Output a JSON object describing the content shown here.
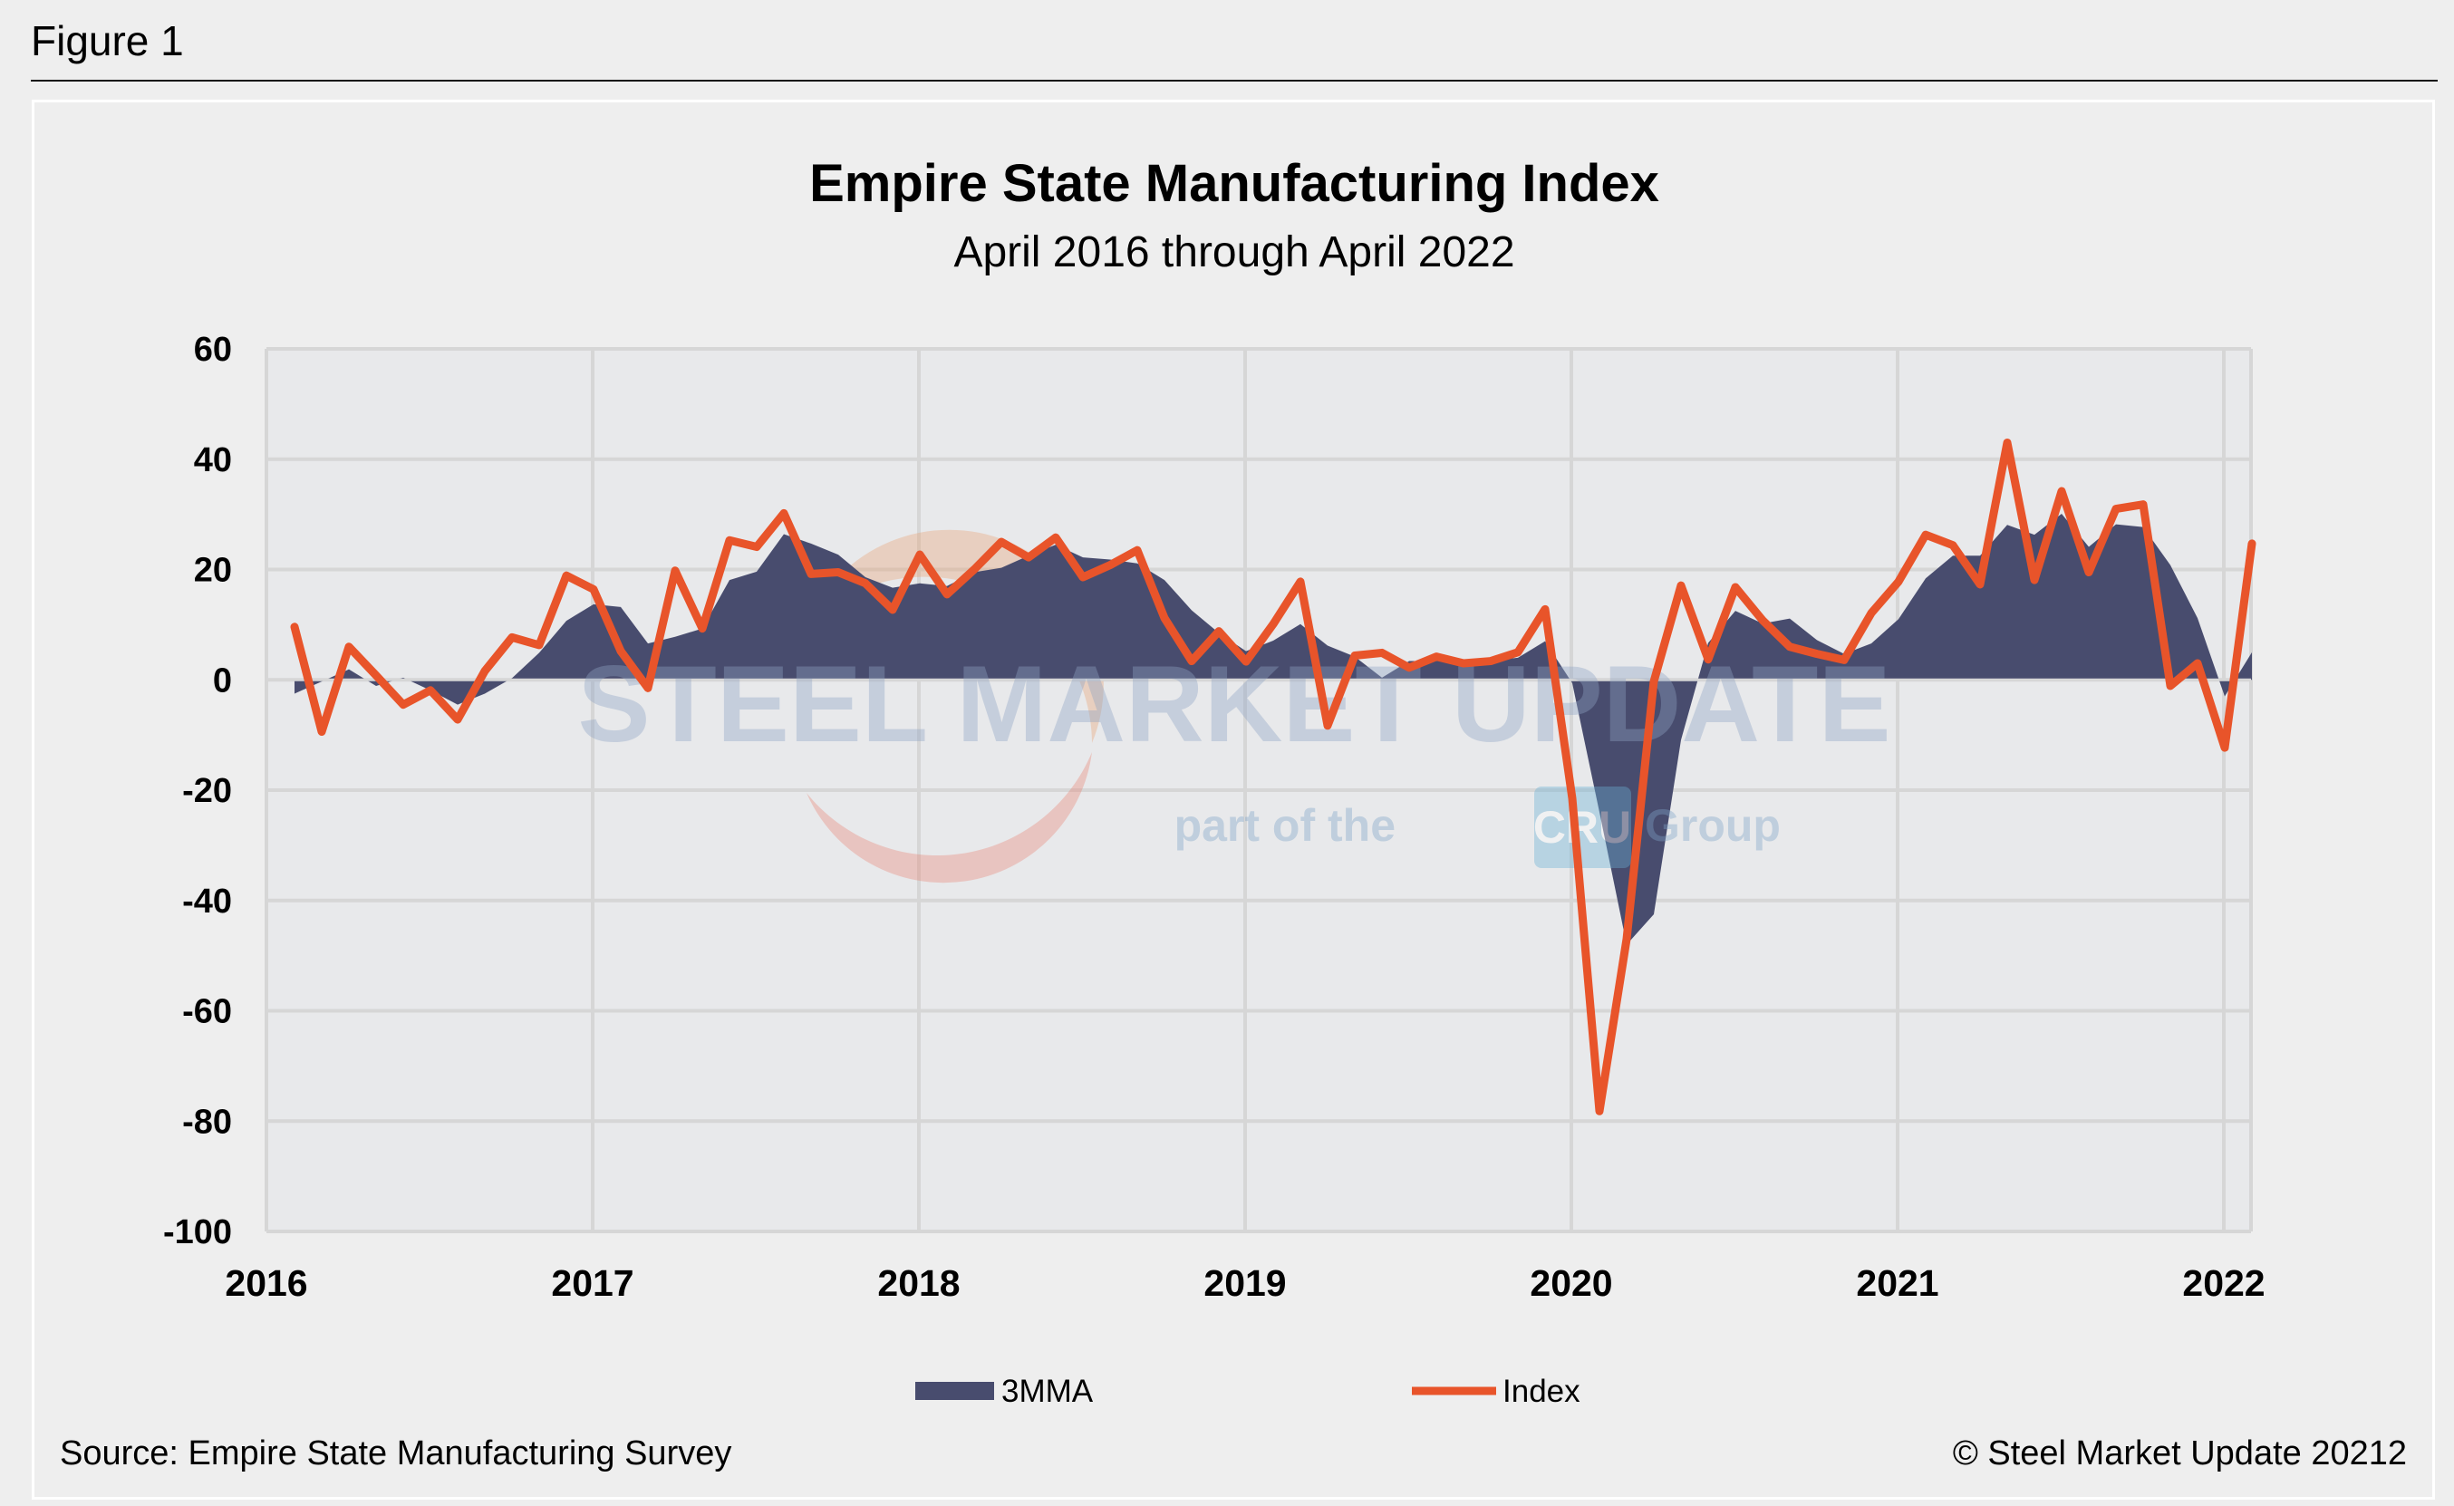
{
  "figure_label": "Figure 1",
  "footer": {
    "source": "Source: Empire State Manufacturing Survey",
    "copyright": "© Steel Market Update 20212"
  },
  "watermark": {
    "brand": "STEEL MARKET UPDATE",
    "tagline_pre": "part of the",
    "tagline_logo": "CRU",
    "tagline_post": "Group"
  },
  "colors": {
    "page_bg": "#eeeeee",
    "plot_bg": "#e8e9eb",
    "grid": "#d6d6d6",
    "area_3mma": "#484c6e",
    "line_index": "#e8542a"
  },
  "chart_data": {
    "type": "area+line",
    "title": "Empire State Manufacturing Index",
    "subtitle": "April 2016 through April 2022",
    "xlabel": "",
    "ylabel": "",
    "ylim": [
      -100,
      60
    ],
    "yticks": [
      60,
      40,
      20,
      0,
      -20,
      -40,
      -60,
      -80,
      -100
    ],
    "xtick_labels": [
      "2016",
      "2017",
      "2018",
      "2019",
      "2020",
      "2021",
      "2022"
    ],
    "grid": true,
    "legend_position": "bottom",
    "categories": [
      "2016-04",
      "2016-05",
      "2016-06",
      "2016-07",
      "2016-08",
      "2016-09",
      "2016-10",
      "2016-11",
      "2016-12",
      "2017-01",
      "2017-02",
      "2017-03",
      "2017-04",
      "2017-05",
      "2017-06",
      "2017-07",
      "2017-08",
      "2017-09",
      "2017-10",
      "2017-11",
      "2017-12",
      "2018-01",
      "2018-02",
      "2018-03",
      "2018-04",
      "2018-05",
      "2018-06",
      "2018-07",
      "2018-08",
      "2018-09",
      "2018-10",
      "2018-11",
      "2018-12",
      "2019-01",
      "2019-02",
      "2019-03",
      "2019-04",
      "2019-05",
      "2019-06",
      "2019-07",
      "2019-08",
      "2019-09",
      "2019-10",
      "2019-11",
      "2019-12",
      "2020-01",
      "2020-02",
      "2020-03",
      "2020-04",
      "2020-05",
      "2020-06",
      "2020-07",
      "2020-08",
      "2020-09",
      "2020-10",
      "2020-11",
      "2020-12",
      "2021-01",
      "2021-02",
      "2021-03",
      "2021-04",
      "2021-05",
      "2021-06",
      "2021-07",
      "2021-08",
      "2021-09",
      "2021-10",
      "2021-11",
      "2021-12",
      "2022-01",
      "2022-02",
      "2022-03",
      "2022-04"
    ],
    "series": [
      {
        "name": "3MMA",
        "type": "area",
        "values": [
          -2.5,
          -0.3,
          1.9,
          -1.1,
          0.4,
          -1.9,
          -4.5,
          -2.5,
          0.3,
          4.9,
          10.7,
          13.7,
          13.2,
          6.6,
          7.8,
          9.3,
          18.1,
          19.6,
          26.4,
          24.7,
          22.7,
          18.6,
          16.7,
          17.5,
          17.0,
          19.5,
          20.3,
          22.5,
          24.5,
          22.2,
          21.8,
          21.1,
          18.1,
          12.6,
          8.5,
          5.2,
          7.1,
          10.1,
          6.2,
          4.2,
          0.4,
          3.4,
          3.4,
          3.4,
          3.5,
          4.0,
          7.0,
          -0.6,
          -24.0,
          -48.0,
          -42.5,
          -10.9,
          6.7,
          12.5,
          10.2,
          11.1,
          7.2,
          4.7,
          6.6,
          11.0,
          18.4,
          22.5,
          22.5,
          28.1,
          26.3,
          30.1,
          24.1,
          28.2,
          27.7,
          20.8,
          11.2,
          -3.0,
          5.0
        ]
      },
      {
        "name": "Index",
        "type": "line",
        "values": [
          9.6,
          -9.4,
          6.0,
          0.8,
          -4.5,
          -1.9,
          -7.2,
          1.6,
          7.7,
          6.3,
          18.9,
          16.4,
          5.2,
          -1.5,
          19.8,
          9.3,
          25.3,
          24.1,
          30.2,
          19.2,
          19.5,
          17.5,
          12.7,
          22.7,
          15.5,
          20.0,
          25.0,
          22.2,
          25.8,
          18.6,
          20.8,
          23.5,
          11.2,
          3.4,
          8.8,
          3.3,
          10.1,
          17.8,
          -8.3,
          4.4,
          4.9,
          2.2,
          4.2,
          3.0,
          3.4,
          5.0,
          12.8,
          -21.5,
          -78.2,
          -47.0,
          -0.3,
          17.1,
          3.7,
          16.8,
          10.8,
          6.0,
          4.7,
          3.6,
          12.1,
          17.8,
          26.3,
          24.4,
          17.3,
          43.0,
          18.1,
          34.2,
          19.5,
          31.0,
          31.8,
          -1.1,
          3.0,
          -12.3,
          24.7
        ]
      }
    ]
  }
}
